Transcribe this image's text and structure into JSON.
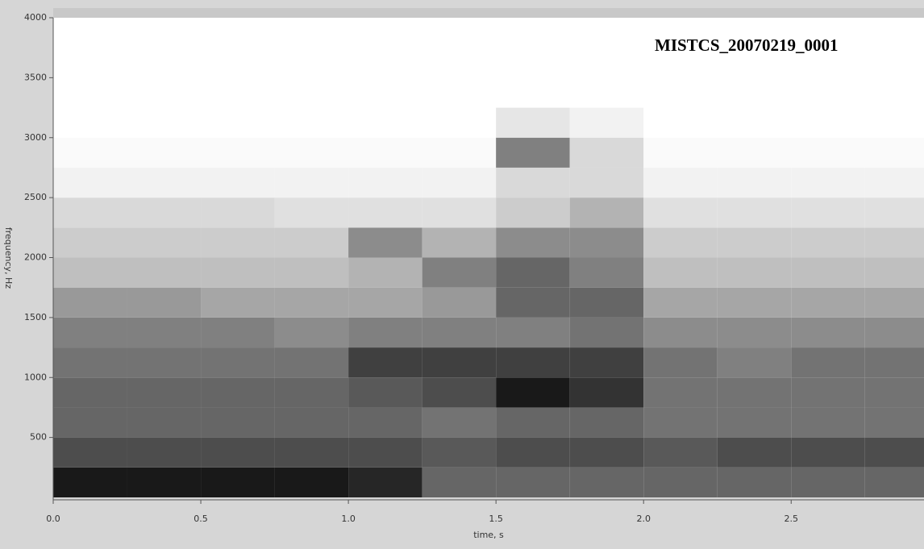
{
  "chart_data": {
    "type": "spectrogram",
    "annotation": "MISTCS_20070219_0001",
    "xlabel": "time, s",
    "ylabel": "frequency, Hz",
    "xlim": [
      0,
      2.95
    ],
    "ylim": [
      0,
      4000
    ],
    "xticks": [
      {
        "value": 0,
        "label": "0.0"
      },
      0.5,
      {
        "value": 1,
        "label": "1.0"
      },
      1.5,
      {
        "value": 2,
        "label": "2.0"
      },
      2.5
    ],
    "yticks": [
      500,
      1000,
      1500,
      2000,
      2500,
      3000,
      3500,
      4000
    ],
    "time_bins": [
      0,
      0.25,
      0.5,
      0.75,
      1,
      1.25,
      1.5,
      1.75,
      2,
      2.25,
      2.5,
      2.75,
      3
    ],
    "freq_bins": [
      0,
      250,
      500,
      750,
      1000,
      1250,
      1500,
      1750,
      2000,
      2250,
      2500,
      2750,
      3000,
      3250,
      3500,
      3750,
      4000
    ],
    "values": [
      [
        0.9,
        0.9,
        0.9,
        0.9,
        0.85,
        0.6,
        0.6,
        0.6,
        0.6,
        0.6,
        0.6,
        0.6
      ],
      [
        0.7,
        0.7,
        0.7,
        0.7,
        0.7,
        0.65,
        0.7,
        0.7,
        0.65,
        0.7,
        0.7,
        0.7
      ],
      [
        0.6,
        0.6,
        0.6,
        0.6,
        0.6,
        0.55,
        0.6,
        0.6,
        0.55,
        0.55,
        0.55,
        0.55
      ],
      [
        0.6,
        0.6,
        0.6,
        0.6,
        0.65,
        0.7,
        0.9,
        0.8,
        0.55,
        0.55,
        0.55,
        0.55
      ],
      [
        0.55,
        0.55,
        0.55,
        0.55,
        0.75,
        0.75,
        0.75,
        0.75,
        0.55,
        0.5,
        0.55,
        0.55
      ],
      [
        0.5,
        0.5,
        0.5,
        0.45,
        0.5,
        0.5,
        0.5,
        0.55,
        0.45,
        0.45,
        0.45,
        0.45
      ],
      [
        0.4,
        0.4,
        0.35,
        0.35,
        0.35,
        0.4,
        0.6,
        0.6,
        0.35,
        0.35,
        0.35,
        0.35
      ],
      [
        0.25,
        0.25,
        0.25,
        0.25,
        0.3,
        0.5,
        0.6,
        0.5,
        0.25,
        0.25,
        0.25,
        0.25
      ],
      [
        0.2,
        0.2,
        0.2,
        0.2,
        0.45,
        0.3,
        0.45,
        0.45,
        0.2,
        0.2,
        0.2,
        0.2
      ],
      [
        0.15,
        0.15,
        0.15,
        0.12,
        0.12,
        0.12,
        0.2,
        0.3,
        0.12,
        0.12,
        0.12,
        0.12
      ],
      [
        0.05,
        0.05,
        0.05,
        0.05,
        0.05,
        0.05,
        0.15,
        0.15,
        0.05,
        0.05,
        0.05,
        0.05
      ],
      [
        0.02,
        0.02,
        0.02,
        0.02,
        0.02,
        0.02,
        0.5,
        0.15,
        0.02,
        0.02,
        0.02,
        0.02
      ],
      [
        0,
        0,
        0,
        0,
        0,
        0,
        0.1,
        0.05,
        0,
        0,
        0,
        0
      ],
      [
        0,
        0,
        0,
        0,
        0,
        0,
        0,
        0,
        0,
        0,
        0,
        0
      ],
      [
        0,
        0,
        0,
        0,
        0,
        0,
        0,
        0,
        0,
        0,
        0,
        0
      ],
      [
        0,
        0,
        0,
        0,
        0,
        0,
        0,
        0,
        0,
        0,
        0,
        0
      ]
    ]
  }
}
